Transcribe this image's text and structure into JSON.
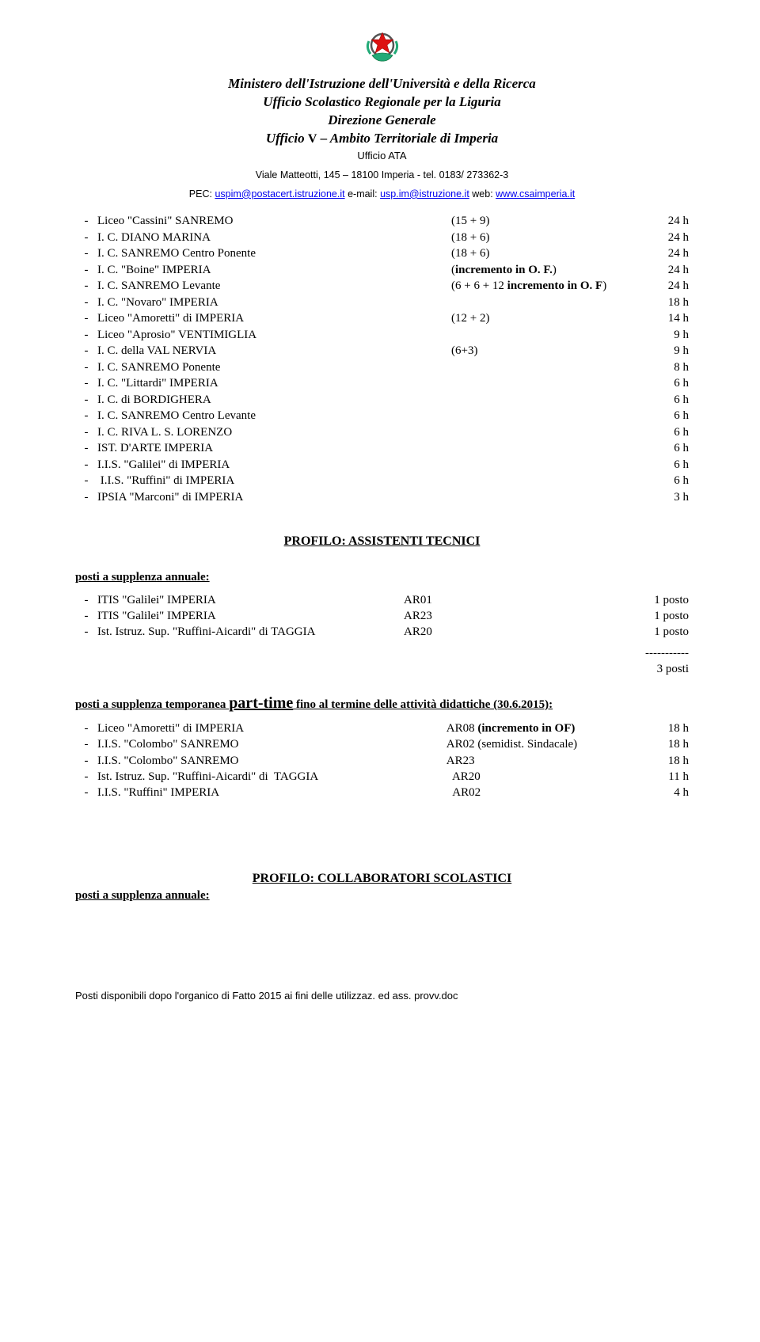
{
  "header": {
    "l1": "Ministero dell'Istruzione dell'Università e della Ricerca",
    "l2": "Ufficio Scolastico Regionale per la Liguria",
    "l3": "Direzione Generale",
    "l4_pre": "Ufficio ",
    "l4_roman": "V",
    "l4_post": " – Ambito Territoriale di Imperia",
    "ata": "Ufficio ATA",
    "addr": "Viale  Matteotti, 145 – 18100 Imperia - tel. 0183/ 273362-3",
    "pec_label": "PEC: ",
    "pec": "uspim@postacert.istruzione.it",
    "email_label": "        e-mail: ",
    "email": "usp.im@istruzione.it",
    "web_label": "        web: ",
    "web": "www.csaimperia.it"
  },
  "list1": [
    {
      "name": "Liceo \"Cassini\" SANREMO",
      "mid": "(15 + 9)",
      "val": "24 h"
    },
    {
      "name": "I. C. DIANO MARINA",
      "mid": "(18 + 6)",
      "val": "24 h"
    },
    {
      "name": "I. C. SANREMO Centro Ponente",
      "mid": "(18 + 6)",
      "val": "24 h"
    },
    {
      "name": "I. C. \"Boine\" IMPERIA",
      "mid": "(incremento in O. F.)",
      "midbold": true,
      "val": "24 h"
    },
    {
      "name": "I. C. SANREMO Levante",
      "mid": "(6 + 6 + 12 incremento in O. F)",
      "midbold": true,
      "val": "24 h"
    },
    {
      "name": "I. C. \"Novaro\" IMPERIA",
      "mid": "",
      "val": "18 h"
    },
    {
      "name": "Liceo \"Amoretti\" di IMPERIA",
      "mid": "(12 + 2)",
      "val": "14 h"
    },
    {
      "name": "Liceo \"Aprosio\" VENTIMIGLIA",
      "mid": "",
      "val": "9 h"
    },
    {
      "name": "I. C. della VAL NERVIA",
      "mid": "(6+3)",
      "val": "9 h"
    },
    {
      "name": "I. C. SANREMO Ponente",
      "mid": "",
      "val": "8 h"
    },
    {
      "name": "I. C. \"Littardi\" IMPERIA",
      "mid": "",
      "val": "6 h"
    },
    {
      "name": "I. C. di BORDIGHERA",
      "mid": "",
      "val": "6 h"
    },
    {
      "name": "I. C. SANREMO Centro Levante",
      "mid": "",
      "val": "6 h"
    },
    {
      "name": "I. C. RIVA L. S. LORENZO",
      "mid": "",
      "val": "6 h"
    },
    {
      "name": "IST. D'ARTE IMPERIA",
      "mid": "",
      "val": "6 h"
    },
    {
      "name": "I.I.S. \"Galilei\" di IMPERIA",
      "mid": "",
      "val": "6 h"
    },
    {
      "name": " I.I.S. \"Ruffini\" di IMPERIA",
      "mid": "",
      "val": "6 h"
    },
    {
      "name": "IPSIA \"Marconi\" di IMPERIA",
      "mid": "",
      "val": "3 h"
    }
  ],
  "profilo1": "PROFILO: ASSISTENTI TECNICI",
  "sub_annuale": "posti  a supplenza annuale:",
  "posti_annuale": [
    {
      "name": "ITIS \"Galilei\" IMPERIA",
      "mid": "AR01",
      "val": "1 posto"
    },
    {
      "name": "ITIS \"Galilei\" IMPERIA",
      "mid": "AR23",
      "val": "1 posto"
    },
    {
      "name": "Ist. Istruz. Sup. \"Ruffini-Aicardi\" di TAGGIA",
      "mid": "AR20",
      "val": "1 posto"
    }
  ],
  "total_dashes": "-----------",
  "total_posti": "3 posti",
  "pt_head_pre": "posti a supplenza temporanea ",
  "pt_head_big": "part-time",
  "pt_head_post": " fino al termine delle attività didattiche (30.6.2015):",
  "posti_pt": [
    {
      "name": "Liceo \"Amoretti\" di IMPERIA",
      "mid": "AR08 (incremento in OF)",
      "midbold": true,
      "val": "18 h"
    },
    {
      "name": "I.I.S. \"Colombo\" SANREMO",
      "mid": "AR02 (semidist. Sindacale)",
      "val": "18 h"
    },
    {
      "name": "I.I.S. \"Colombo\" SANREMO",
      "mid": "AR23",
      "val": "18 h"
    },
    {
      "name": "Ist. Istruz. Sup. \"Ruffini-Aicardi\" di  TAGGIA",
      "mid": "  AR20",
      "val": "11 h"
    },
    {
      "name": "I.I.S. \"Ruffini\" IMPERIA",
      "mid": "AR02",
      "val": "4 h"
    }
  ],
  "profilo2": "PROFILO: COLLABORATORI SCOLASTICI",
  "sub_annuale2": "posti  a supplenza annuale:",
  "footer": "Posti disponibili dopo l'organico di Fatto 2015 ai fini delle utilizzaz. ed ass. provv.doc"
}
